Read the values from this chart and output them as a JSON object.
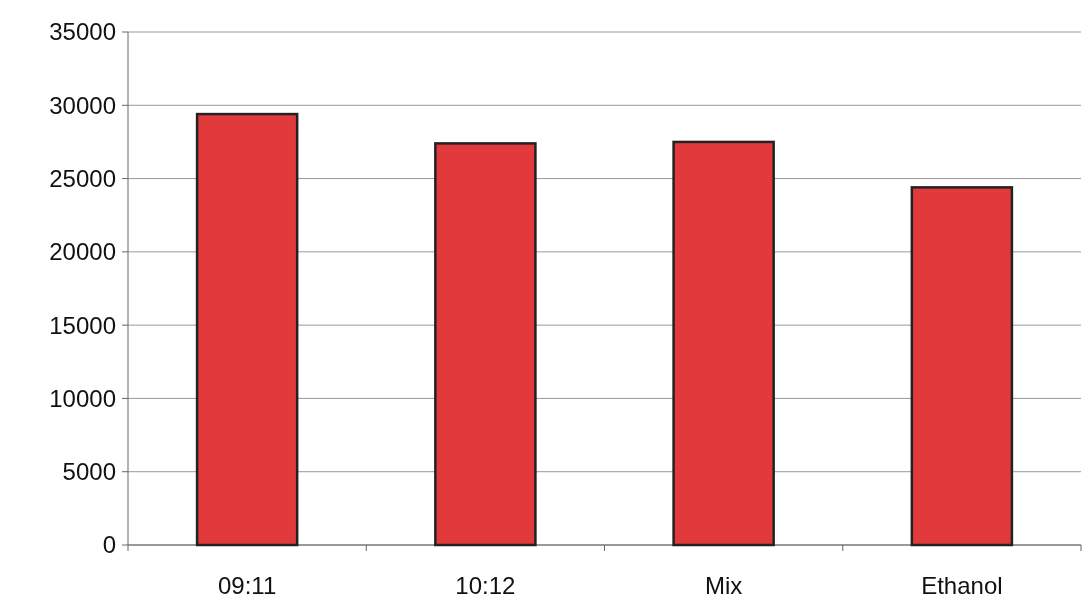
{
  "chart_data": {
    "type": "bar",
    "categories": [
      "09:11",
      "10:12",
      "Mix",
      "Ethanol"
    ],
    "values": [
      29400,
      27400,
      27500,
      24400
    ],
    "color": "#e23a3c",
    "ylim": [
      0,
      35000
    ],
    "yticks": [
      0,
      5000,
      10000,
      15000,
      20000,
      25000,
      30000,
      35000
    ],
    "grid": "y"
  }
}
